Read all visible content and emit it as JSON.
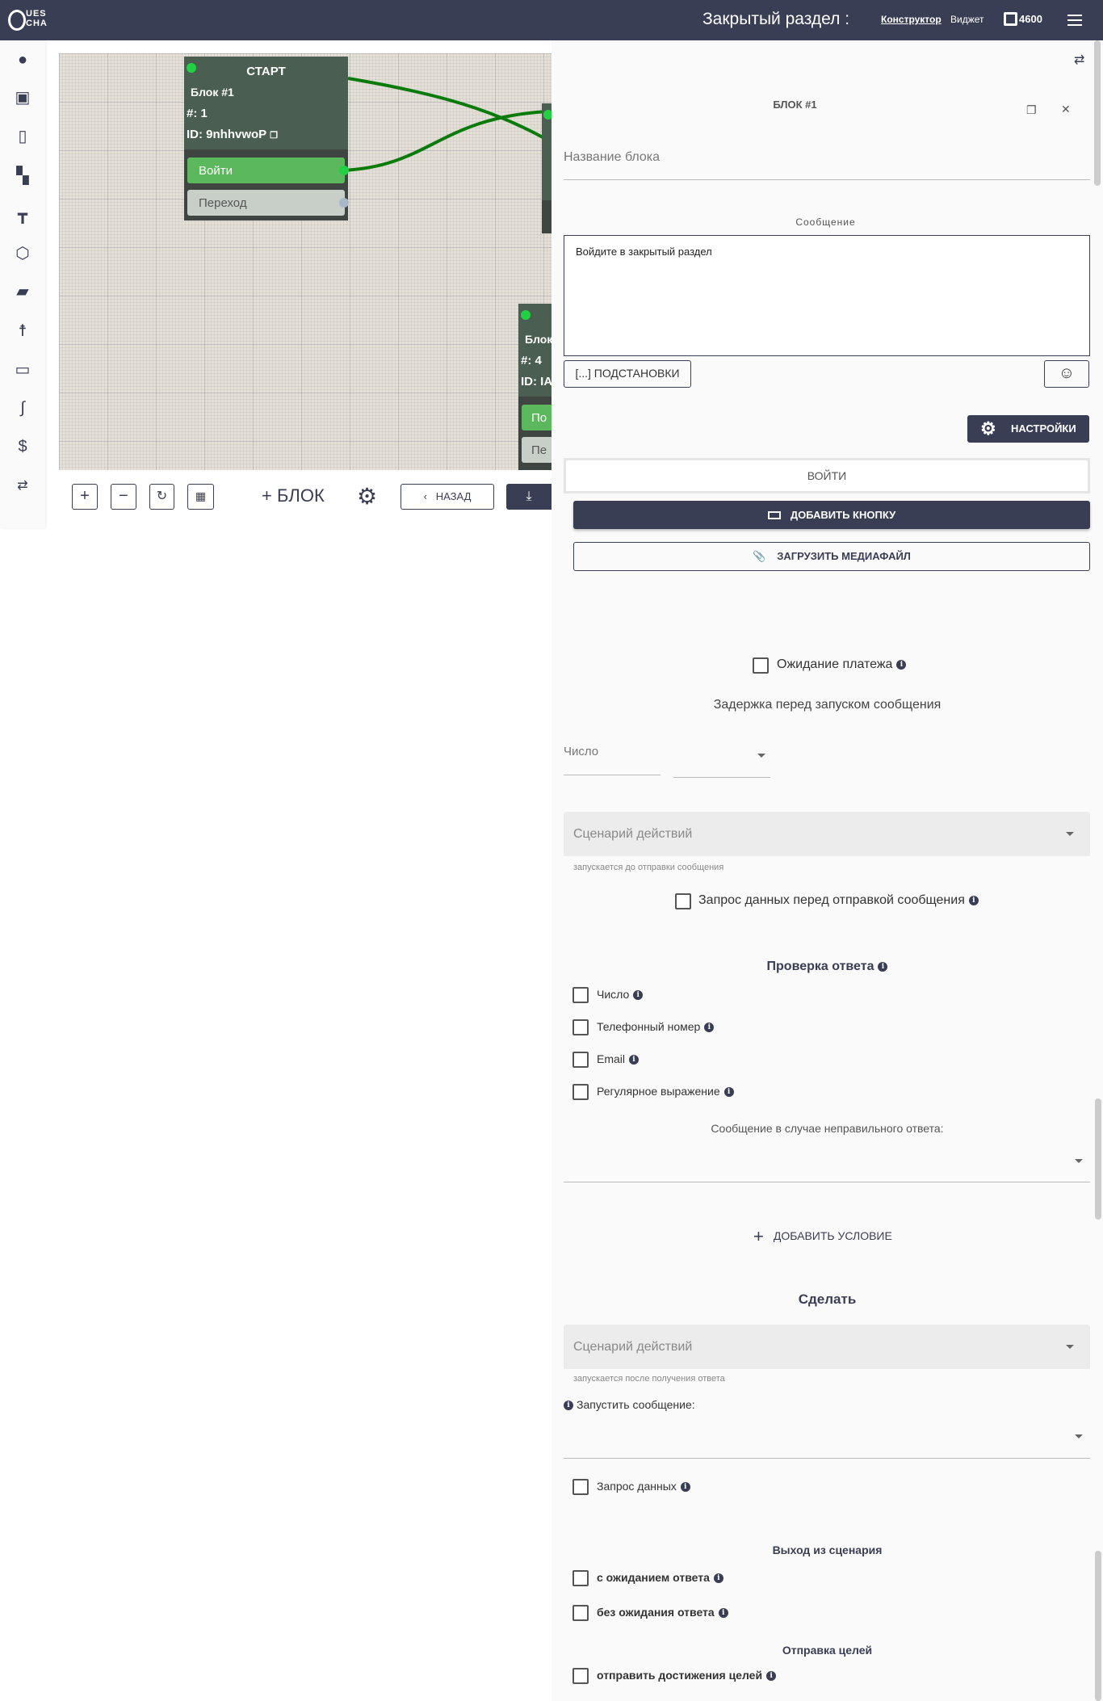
{
  "header": {
    "logo": "QUESCHA",
    "title": "Закрытый раздел :",
    "nav": [
      {
        "label": "Конструктор",
        "active": true
      },
      {
        "label": "Виджет"
      }
    ],
    "balance": "4600",
    "menu_icon": "hamburger-icon"
  },
  "sidebar": {
    "icons": [
      "palette-icon",
      "robot-icon",
      "mobile-icon",
      "sitemap-icon",
      "hammer-icon",
      "cube-icon",
      "chat-icon",
      "user-icon",
      "card-icon",
      "route-icon",
      "dollar-icon",
      "swap-icon"
    ]
  },
  "canvas": {
    "nodes": [
      {
        "title": "СТАРТ",
        "name": "Блок #1",
        "number": "#: 1",
        "id": "ID: 9nhhvwoP",
        "buttons": [
          "Войти",
          "Переход"
        ]
      },
      {
        "name": "Блок",
        "number": "#: 4",
        "id": "ID: IA",
        "buttons": [
          "По",
          "Пе"
        ]
      }
    ],
    "toolbar": {
      "zoom_in": "+",
      "zoom_out": "−",
      "add_block": "БЛОК",
      "back": "НАЗАД"
    }
  },
  "panel": {
    "block_title": "БЛОК #1",
    "name_placeholder": "Название блока",
    "message_label": "Сообщение",
    "message_value": "Войдите в закрытый раздел",
    "substitutions": "[...] ПОДСТАНОВКИ",
    "settings": "НАСТРОЙКИ",
    "button_label": "ВОЙТИ",
    "add_button": "ДОБАВИТЬ КНОПКУ",
    "upload_media": "ЗАГРУЗИТЬ МЕДИАФАЙЛ",
    "payment_wait": "Ожидание платежа",
    "delay_title": "Задержка перед запуском сообщения",
    "number_placeholder": "Число",
    "scenario_placeholder": "Сценарий действий",
    "scenario_help_before": "запускается до отправки сообщения",
    "request_before": "Запрос данных перед отправкой сообщения",
    "check_title": "Проверка ответа",
    "checks": [
      "Число",
      "Телефонный номер",
      "Email",
      "Регулярное выражение"
    ],
    "wrong_answer": "Сообщение в случае неправильного ответа:",
    "add_condition": "ДОБАВИТЬ УСЛОВИЕ",
    "do_title": "Сделать",
    "scenario_help_after": "запускается после получения ответа",
    "run_message": "Запустить сообщение:",
    "request_data": "Запрос данных",
    "exit_title": "Выход из сценария",
    "exit_with": "с ожиданием ответа",
    "exit_without": "без ожидания ответа",
    "goals_title": "Отправка целей",
    "goals_send": "отправить достижения целей"
  }
}
